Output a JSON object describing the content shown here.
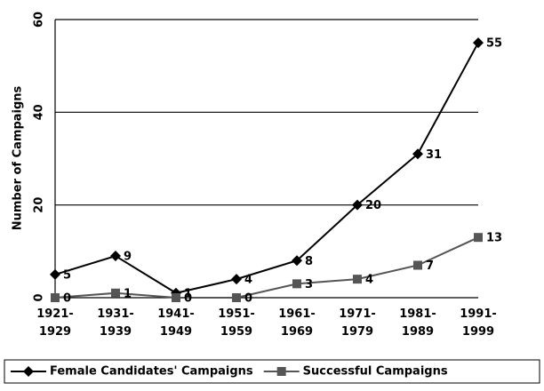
{
  "chart_data": {
    "type": "line",
    "y_label": "Number of Campaigns",
    "categories": [
      "1921-1929",
      "1931-1939",
      "1941-1949",
      "1951-1959",
      "1961-1969",
      "1971-1979",
      "1981-1989",
      "1991-1999"
    ],
    "series": [
      {
        "name": "Female Candidates' Campaigns",
        "color": "#000000",
        "marker": "diamond",
        "values": [
          5,
          9,
          1,
          4,
          8,
          20,
          31,
          55
        ]
      },
      {
        "name": "Successful Campaigns",
        "color": "#555555",
        "marker": "square",
        "values": [
          0,
          1,
          0,
          0,
          3,
          4,
          7,
          13
        ]
      }
    ],
    "ylim": [
      0,
      60
    ],
    "yticks": [
      0,
      20,
      40,
      60
    ],
    "grid": true,
    "legend": "bottom"
  }
}
